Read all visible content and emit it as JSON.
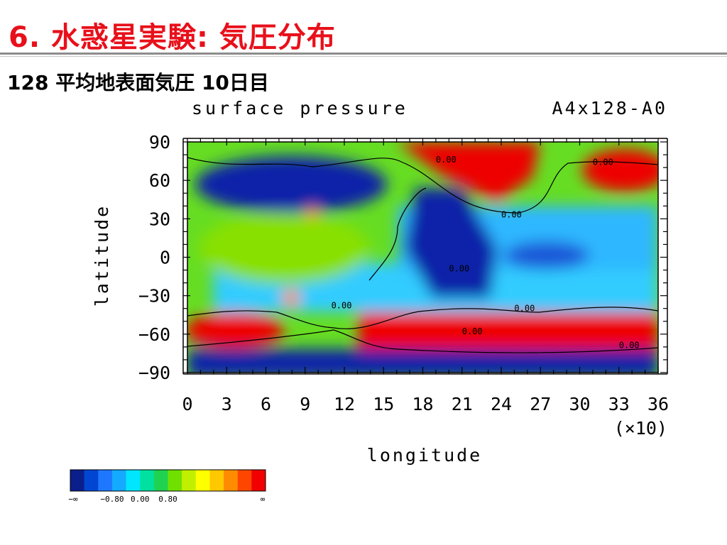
{
  "slide": {
    "title": "6. 水惑星実験: 気圧分布",
    "subtitle": "128 平均地表面気圧 10日目"
  },
  "chart_data": {
    "type": "heatmap",
    "title": "surface pressure",
    "run_label": "A4x128-A0",
    "xlabel": "longitude",
    "ylabel": "latitude",
    "x_multiplier": "(×10)",
    "xlim": [
      0,
      36
    ],
    "ylim": [
      -90,
      90
    ],
    "x_ticks": [
      "0",
      "3",
      "6",
      "9",
      "12",
      "15",
      "18",
      "21",
      "24",
      "27",
      "30",
      "33",
      "36"
    ],
    "y_ticks": [
      "90",
      "60",
      "30",
      "0",
      "−30",
      "−60",
      "−90"
    ],
    "contour_labels": [
      {
        "text": "0.00",
        "lon": 19,
        "lat": 74
      },
      {
        "text": "0.00",
        "lon": 31,
        "lat": 72
      },
      {
        "text": "0.00",
        "lon": 24,
        "lat": 31
      },
      {
        "text": "0.00",
        "lon": 20,
        "lat": -11
      },
      {
        "text": "0.00",
        "lon": 11,
        "lat": -40
      },
      {
        "text": "0.00",
        "lon": 25,
        "lat": -42
      },
      {
        "text": "0.00",
        "lon": 21,
        "lat": -60
      },
      {
        "text": "0.00",
        "lon": 33,
        "lat": -71
      }
    ],
    "colorbar": {
      "colors": [
        "#0a1e8c",
        "#0046d2",
        "#1e78ff",
        "#14aaff",
        "#00e6ff",
        "#00e0a0",
        "#20d250",
        "#70e000",
        "#c0f000",
        "#ffff00",
        "#ffc800",
        "#ff8c00",
        "#ff4600",
        "#f00000"
      ],
      "labels": [
        "−∞",
        "−0.80",
        "0.00",
        "0.80",
        "∞"
      ]
    },
    "field_regions": [
      {
        "kind": "high",
        "lon": [
          18,
          32
        ],
        "lat": [
          64,
          90
        ],
        "value": 1.2
      },
      {
        "kind": "high",
        "lon": [
          31,
          36
        ],
        "lat": [
          54,
          74
        ],
        "value": 1.0
      },
      {
        "kind": "high",
        "lon": [
          0,
          7
        ],
        "lat": [
          -68,
          -50
        ],
        "value": 1.2
      },
      {
        "kind": "high",
        "lon": [
          14,
          36
        ],
        "lat": [
          -70,
          -48
        ],
        "value": 1.2
      },
      {
        "kind": "low",
        "lon": [
          1,
          16
        ],
        "lat": [
          40,
          80
        ],
        "value": -1.1
      },
      {
        "kind": "low",
        "lon": [
          17,
          27
        ],
        "lat": [
          -25,
          40
        ],
        "value": -1.2
      },
      {
        "kind": "low",
        "lon": [
          0,
          36
        ],
        "lat": [
          -90,
          -72
        ],
        "value": -1.2
      },
      {
        "kind": "near-zero",
        "lon": [
          0,
          13
        ],
        "lat": [
          -40,
          30
        ],
        "value": 0.1
      }
    ]
  }
}
